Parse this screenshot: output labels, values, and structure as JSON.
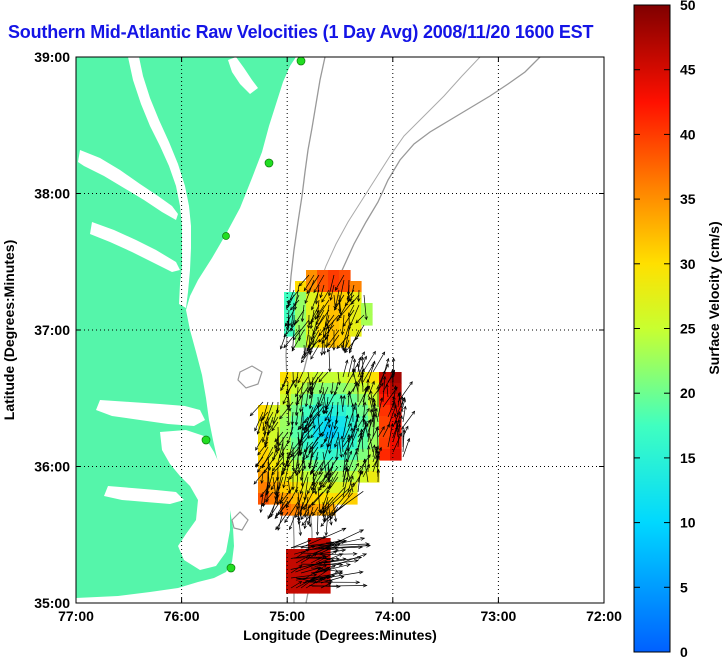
{
  "title": "Southern Mid-Atlantic Raw Velocities (1 Day Avg) 2008/11/20 1600 EST",
  "map": {
    "xlabel": "Longitude (Degrees:Minutes)",
    "ylabel": "Latitude (Degrees:Minutes)",
    "lon_ticks": [
      "77:00",
      "76:00",
      "75:00",
      "74:00",
      "73:00",
      "72:00"
    ],
    "lat_ticks": [
      "39:00",
      "38:00",
      "37:00",
      "36:00",
      "35:00"
    ],
    "lon_range": [
      -77,
      -72
    ],
    "lat_range": [
      35,
      39
    ],
    "grid": "dotted",
    "colors": {
      "land": "#55f5aa",
      "bathymetry": "#999999",
      "station": "#22dd22",
      "arrows": "#000000"
    }
  },
  "colorbar": {
    "label": "Surface Velocity (cm/s)",
    "ticks": [
      "50",
      "45",
      "40",
      "35",
      "30",
      "25",
      "20",
      "15",
      "10",
      "5",
      "0"
    ],
    "range": [
      0,
      50
    ],
    "colormap": "jet"
  }
}
